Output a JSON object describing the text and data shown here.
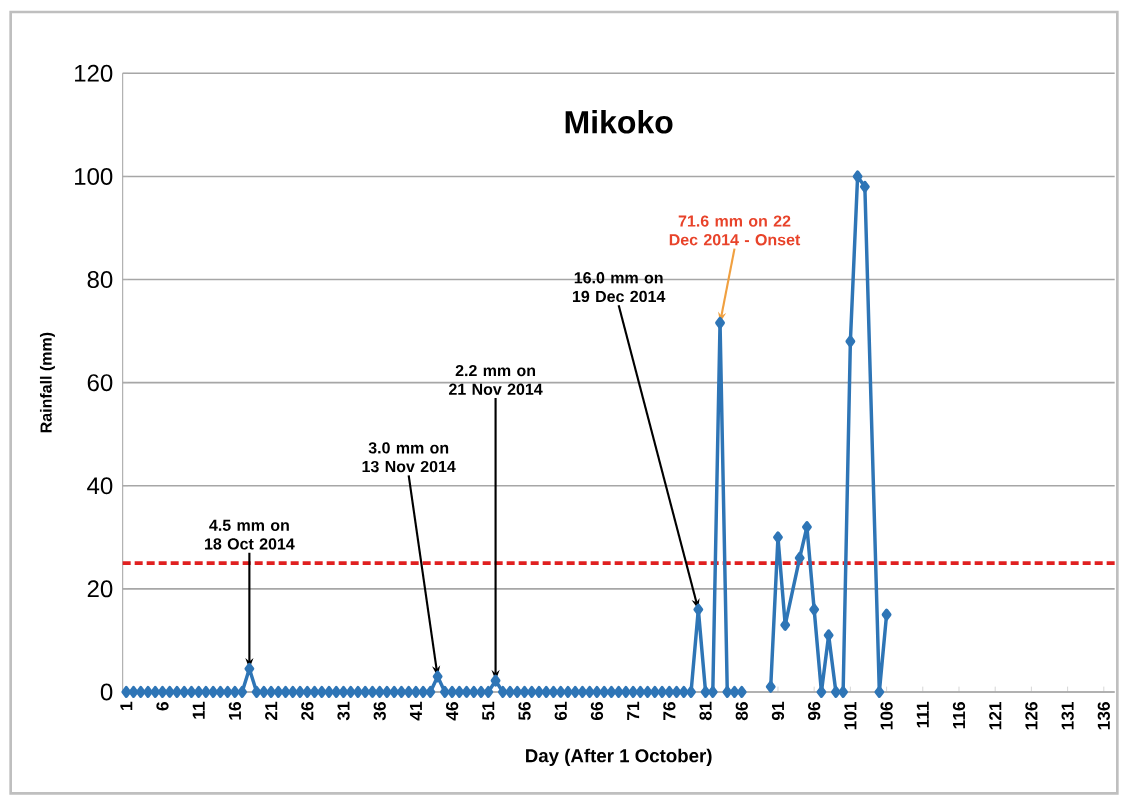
{
  "chart_data": {
    "type": "line",
    "title": "Mikoko",
    "xlabel": "Day (After 1 October)",
    "ylabel": "Rainfall (mm)",
    "xlim": [
      0.5,
      137.5
    ],
    "xticks": [
      1,
      6,
      11,
      16,
      21,
      26,
      31,
      36,
      41,
      46,
      51,
      56,
      61,
      66,
      71,
      76,
      81,
      86,
      91,
      96,
      101,
      106,
      111,
      116,
      121,
      126,
      131,
      136
    ],
    "ylim": [
      0,
      120
    ],
    "yticks": [
      0,
      20,
      40,
      60,
      80,
      100,
      120
    ],
    "grid": "y",
    "marker": "diamond",
    "line_style": "solid",
    "series": [
      {
        "color": "#2e75b6",
        "x": [
          1,
          2,
          3,
          4,
          5,
          6,
          7,
          8,
          9,
          10,
          11,
          12,
          13,
          14,
          15,
          16,
          17,
          18,
          19,
          20,
          21,
          22,
          23,
          24,
          25,
          26,
          27,
          28,
          29,
          30,
          31,
          32,
          33,
          34,
          35,
          36,
          37,
          38,
          39,
          40,
          41,
          42,
          43,
          44,
          45,
          46,
          47,
          48,
          49,
          50,
          51,
          52,
          53,
          54,
          55,
          56,
          57,
          58,
          59,
          60,
          61,
          62,
          63,
          64,
          65,
          66,
          67,
          68,
          69,
          70,
          71,
          72,
          73,
          74,
          75,
          76,
          77,
          78,
          79,
          80,
          81,
          82,
          83,
          84,
          85,
          86,
          87,
          90,
          91,
          92,
          94,
          95,
          96,
          97,
          98,
          99,
          100,
          101,
          102,
          103,
          105,
          106
        ],
        "values": [
          0,
          0,
          0,
          0,
          0,
          0,
          0,
          0,
          0,
          0,
          0,
          0,
          0,
          0,
          0,
          0,
          0,
          4.5,
          0,
          0,
          0,
          0,
          0,
          0,
          0,
          0,
          0,
          0,
          0,
          0,
          0,
          0,
          0,
          0,
          0,
          0,
          0,
          0,
          0,
          0,
          0,
          0,
          0,
          3.0,
          0,
          0,
          0,
          0,
          0,
          0,
          0,
          2.2,
          0,
          0,
          0,
          0,
          0,
          0,
          0,
          0,
          0,
          0,
          0,
          0,
          0,
          0,
          0,
          0,
          0,
          0,
          0,
          0,
          0,
          0,
          0,
          0,
          0,
          0,
          0,
          16.0,
          0,
          0,
          71.6,
          0,
          0,
          0,
          null,
          1,
          30,
          13,
          26,
          32,
          16,
          0,
          11,
          0,
          0,
          68,
          100,
          98,
          0,
          15
        ]
      }
    ],
    "ref_lines": [
      {
        "axis": "y",
        "value": 25,
        "color": "#e02020",
        "line_style": "dashed"
      }
    ],
    "annotations": [
      {
        "text": "4.5 mm on 18 Oct 2014",
        "x": 18,
        "y": 4.5
      },
      {
        "text": "3.0 mm on 13 Nov 2014",
        "x": 44,
        "y": 3.0
      },
      {
        "text": "2.2 mm on 21 Nov 2014",
        "x": 52,
        "y": 2.2
      },
      {
        "text": "16.0 mm on 19 Dec 2014",
        "x": 80,
        "y": 16.0
      },
      {
        "text": "71.6 mm on 22 Dec 2014 - Onset",
        "x": 83,
        "y": 71.6
      }
    ]
  }
}
